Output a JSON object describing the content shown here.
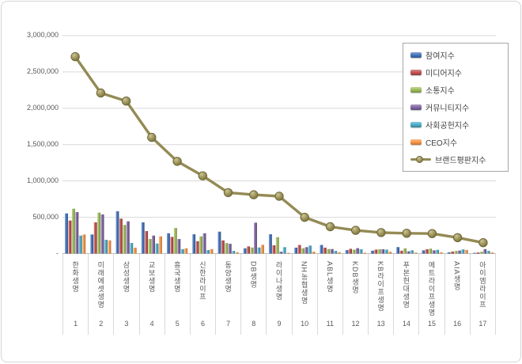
{
  "chart_data": {
    "type": "combo-bar-line",
    "title": "",
    "xlabel": "",
    "ylabel": "",
    "ylim": [
      0,
      3000000
    ],
    "grid": true,
    "legend_position": "top-right-inside",
    "yticks": [
      {
        "value": 3000000,
        "label": "3,000,000"
      },
      {
        "value": 2500000,
        "label": "2,500,000"
      },
      {
        "value": 2000000,
        "label": "2,000,000"
      },
      {
        "value": 1500000,
        "label": "1,500,000"
      },
      {
        "value": 1000000,
        "label": "1,000,000"
      },
      {
        "value": 500000,
        "label": "500,000"
      },
      {
        "value": 0,
        "label": "-"
      }
    ],
    "categories": [
      "한화생명",
      "미래에셋생명",
      "삼성생명",
      "교보생명",
      "흥국생명",
      "신한라이프",
      "동양생명",
      "DB생명",
      "라이나생명",
      "NH농협생명",
      "ABL생명",
      "KDB생명",
      "KB라이프생명",
      "푸본현대생명",
      "메트라이프생명",
      "AIA생명",
      "아이엠라이프"
    ],
    "ranks": [
      "1",
      "2",
      "3",
      "4",
      "5",
      "6",
      "7",
      "8",
      "9",
      "10",
      "11",
      "12",
      "13",
      "14",
      "15",
      "16",
      "17"
    ],
    "series": [
      {
        "name": "참여지수",
        "type": "bar",
        "color": "#4472b8",
        "values": [
          553000,
          263000,
          582000,
          430000,
          280000,
          266000,
          302000,
          73000,
          266000,
          82000,
          119000,
          48000,
          40000,
          90000,
          45000,
          18000,
          10000
        ]
      },
      {
        "name": "미디어지수",
        "type": "bar",
        "color": "#c0504d",
        "values": [
          455000,
          430000,
          481000,
          310000,
          230000,
          171000,
          182000,
          99000,
          114000,
          119000,
          82000,
          66000,
          55000,
          40000,
          60000,
          28000,
          16000
        ]
      },
      {
        "name": "소통지수",
        "type": "bar",
        "color": "#9bbb59",
        "values": [
          618000,
          564000,
          394000,
          201000,
          353000,
          237000,
          146000,
          84000,
          226000,
          74000,
          63000,
          55000,
          60000,
          72000,
          68000,
          36000,
          26000
        ]
      },
      {
        "name": "커뮤니티지수",
        "type": "bar",
        "color": "#8064a2",
        "values": [
          571000,
          539000,
          444000,
          248000,
          201000,
          280000,
          135000,
          426000,
          26000,
          89000,
          63000,
          75000,
          60000,
          32000,
          45000,
          42000,
          62000
        ]
      },
      {
        "name": "사회공헌지수",
        "type": "bar",
        "color": "#4bacc6",
        "values": [
          248000,
          190000,
          146000,
          139000,
          62000,
          48000,
          37000,
          84000,
          89000,
          111000,
          37000,
          60000,
          55000,
          46000,
          52000,
          58000,
          38000
        ]
      },
      {
        "name": "CEO지수",
        "type": "bar",
        "color": "#f79646",
        "values": [
          263000,
          182000,
          81000,
          237000,
          73000,
          62000,
          19000,
          121000,
          10000,
          26000,
          19000,
          12000,
          25000,
          14000,
          18000,
          50000,
          16000
        ]
      }
    ],
    "line_series": {
      "name": "브랜드평판지수",
      "type": "line",
      "color": "#948a54",
      "values": [
        2710000,
        2210000,
        2100000,
        1600000,
        1270000,
        1070000,
        840000,
        810000,
        790000,
        500000,
        370000,
        320000,
        290000,
        280000,
        275000,
        220000,
        150000
      ]
    }
  },
  "colors": {
    "gridline": "#d9d9d9",
    "axis_line": "#bfbfbf",
    "tick_text": "#595959",
    "legend_border": "#a6a6a6",
    "line_marker_stroke": "#6f6839"
  }
}
